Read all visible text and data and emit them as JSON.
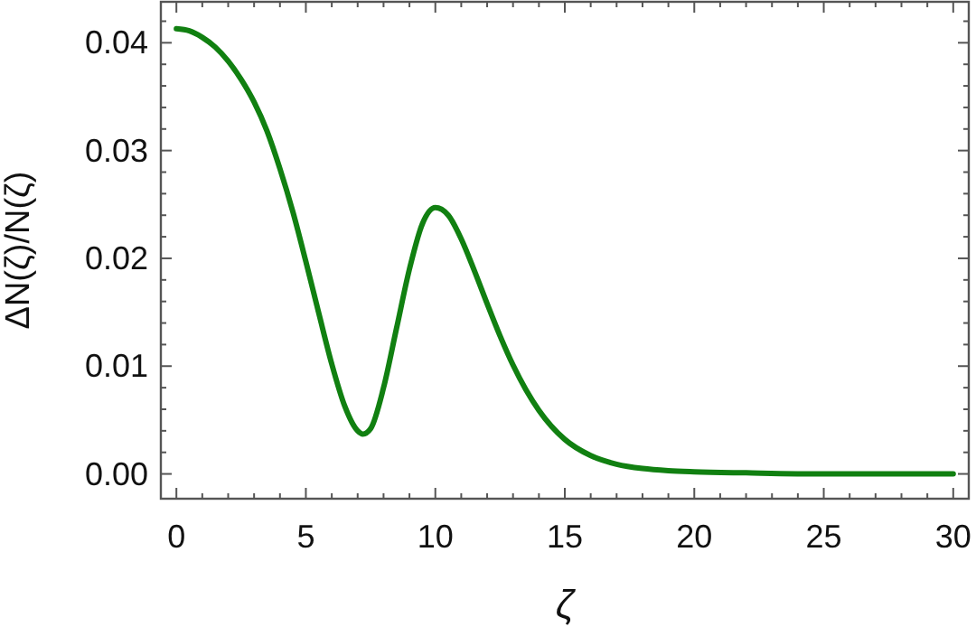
{
  "chart_data": {
    "type": "line",
    "xlabel": "ζ",
    "ylabel": "ΔN(ζ)/N(ζ)",
    "x": [
      0,
      0.5,
      1,
      1.5,
      2,
      2.5,
      3,
      3.5,
      4,
      4.5,
      5,
      5.5,
      6,
      6.5,
      7,
      7.2,
      7.5,
      8,
      8.5,
      9,
      9.5,
      10,
      10.5,
      11,
      11.5,
      12,
      12.5,
      13,
      13.5,
      14,
      15,
      16,
      17,
      18,
      19,
      20,
      22,
      25,
      28,
      30
    ],
    "series": [
      {
        "color": "#118011",
        "values": [
          0.0413,
          0.0411,
          0.0405,
          0.0396,
          0.0383,
          0.0366,
          0.0345,
          0.0318,
          0.0283,
          0.0243,
          0.0197,
          0.0149,
          0.0102,
          0.0063,
          0.004,
          0.0037,
          0.0042,
          0.008,
          0.0135,
          0.019,
          0.0232,
          0.0247,
          0.024,
          0.0218,
          0.0189,
          0.0158,
          0.0128,
          0.0101,
          0.0078,
          0.0059,
          0.0032,
          0.0017,
          0.0009,
          0.0005,
          0.0003,
          0.0002,
          0.0001,
          0,
          0,
          0
        ]
      }
    ],
    "xlim": [
      -0.6,
      30.6
    ],
    "ylim": [
      -0.0023,
      0.0438
    ],
    "xticks": [
      0,
      {
        "value": 1,
        "label": null
      },
      {
        "value": 2,
        "label": null
      },
      {
        "value": 3,
        "label": null
      },
      {
        "value": 4,
        "label": null
      },
      5,
      {
        "value": 6,
        "label": null
      },
      {
        "value": 7,
        "label": null
      },
      {
        "value": 8,
        "label": null
      },
      {
        "value": 9,
        "label": null
      },
      10,
      {
        "value": 11,
        "label": null
      },
      {
        "value": 12,
        "label": null
      },
      {
        "value": 13,
        "label": null
      },
      {
        "value": 14,
        "label": null
      },
      15,
      {
        "value": 16,
        "label": null
      },
      {
        "value": 17,
        "label": null
      },
      {
        "value": 18,
        "label": null
      },
      {
        "value": 19,
        "label": null
      },
      20,
      {
        "value": 21,
        "label": null
      },
      {
        "value": 22,
        "label": null
      },
      {
        "value": 23,
        "label": null
      },
      {
        "value": 24,
        "label": null
      },
      25,
      {
        "value": 26,
        "label": null
      },
      {
        "value": 27,
        "label": null
      },
      {
        "value": 28,
        "label": null
      },
      {
        "value": 29,
        "label": null
      },
      30
    ],
    "yticks": [
      {
        "value": 0,
        "label": "0.00"
      },
      {
        "value": 0.002,
        "label": null
      },
      {
        "value": 0.004,
        "label": null
      },
      {
        "value": 0.006,
        "label": null
      },
      {
        "value": 0.008,
        "label": null
      },
      {
        "value": 0.01,
        "label": "0.01"
      },
      {
        "value": 0.012,
        "label": null
      },
      {
        "value": 0.014,
        "label": null
      },
      {
        "value": 0.016,
        "label": null
      },
      {
        "value": 0.018,
        "label": null
      },
      {
        "value": 0.02,
        "label": "0.02"
      },
      {
        "value": 0.022,
        "label": null
      },
      {
        "value": 0.024,
        "label": null
      },
      {
        "value": 0.026,
        "label": null
      },
      {
        "value": 0.028,
        "label": null
      },
      {
        "value": 0.03,
        "label": "0.03"
      },
      {
        "value": 0.032,
        "label": null
      },
      {
        "value": 0.034,
        "label": null
      },
      {
        "value": 0.036,
        "label": null
      },
      {
        "value": 0.038,
        "label": null
      },
      {
        "value": 0.04,
        "label": "0.04"
      },
      {
        "value": 0.042,
        "label": null
      }
    ],
    "grid": false,
    "line_style": "solid"
  }
}
